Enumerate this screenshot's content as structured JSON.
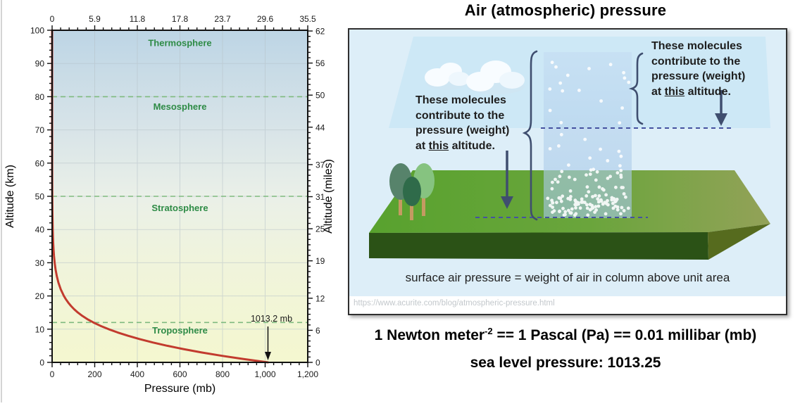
{
  "slide": {
    "title": "Air (atmospheric) pressure",
    "equation": {
      "pre": "1 Newton meter",
      "sup": "-2",
      "post": " == 1 Pascal (Pa) == 0.01 millibar (mb)"
    },
    "sea_level_line": "sea level pressure: 1013.25"
  },
  "illustration": {
    "left_note": {
      "lines": [
        "These molecules",
        "contribute to the",
        "pressure (weight)"
      ],
      "last": {
        "pre": "at ",
        "underlined": "this",
        "post": " altitude."
      }
    },
    "right_note": {
      "lines": [
        "These molecules",
        "contribute to the",
        "pressure (weight)"
      ],
      "last": {
        "pre": "at ",
        "underlined": "this",
        "post": " altitude."
      }
    },
    "caption": "surface air pressure = weight of air in column above unit area",
    "watermark": "https://www.acurite.com/blog/atmospheric-pressure.html"
  },
  "chart_data": {
    "type": "line",
    "title": "",
    "xlabel": "Pressure (mb)",
    "ylabel_left": "Altitude (km)",
    "ylabel_right": "Altitude (miles)",
    "xlim_mb": [
      0,
      1200
    ],
    "ylim_km": [
      0,
      100
    ],
    "grid": true,
    "legend": "none",
    "bottom_ticks": [
      {
        "v": 0,
        "label": "0"
      },
      {
        "v": 200,
        "label": "200"
      },
      {
        "v": 400,
        "label": "400"
      },
      {
        "v": 600,
        "label": "600"
      },
      {
        "v": 800,
        "label": "800"
      },
      {
        "v": 1000,
        "label": "1,000"
      },
      {
        "v": 1200,
        "label": "1,200"
      }
    ],
    "top_ticks": [
      {
        "v": 0,
        "label": "0"
      },
      {
        "v": 200,
        "label": "5.9"
      },
      {
        "v": 400,
        "label": "11.8"
      },
      {
        "v": 600,
        "label": "17.8"
      },
      {
        "v": 800,
        "label": "23.7"
      },
      {
        "v": 1000,
        "label": "29.6"
      },
      {
        "v": 1200,
        "label": "35.5"
      }
    ],
    "left_ticks_km": [
      0,
      10,
      20,
      30,
      40,
      50,
      60,
      70,
      80,
      90,
      100
    ],
    "right_ticks_miles": [
      0,
      6,
      12,
      19,
      25,
      31,
      37,
      44,
      50,
      56,
      62
    ],
    "km_per_mile": 1.60934,
    "minor_step_mb": 40,
    "minor_step_km": 2,
    "minor_step_miles": 1,
    "boundaries_km": [
      80,
      50,
      12
    ],
    "layers": [
      {
        "name": "Thermosphere",
        "label_km": 96.2
      },
      {
        "name": "Mesosphere",
        "label_km": 77.0
      },
      {
        "name": "Stratosphere",
        "label_km": 46.5
      },
      {
        "name": "Troposphere",
        "label_km": 9.6
      }
    ],
    "series": [
      {
        "name": "Atmospheric pressure profile",
        "points_km_mb": [
          [
            100,
            0.0003
          ],
          [
            90,
            0.0018
          ],
          [
            80,
            0.011
          ],
          [
            70,
            0.052
          ],
          [
            60,
            0.22
          ],
          [
            55,
            0.43
          ],
          [
            50,
            0.8
          ],
          [
            45,
            1.5
          ],
          [
            40,
            2.87
          ],
          [
            38,
            3.77
          ],
          [
            36,
            4.98
          ],
          [
            34,
            6.63
          ],
          [
            32,
            8.89
          ],
          [
            30,
            11.97
          ],
          [
            28,
            16.16
          ],
          [
            26,
            21.88
          ],
          [
            24,
            29.72
          ],
          [
            22,
            40.47
          ],
          [
            20,
            55.29
          ],
          [
            19,
            64.67
          ],
          [
            18,
            75.65
          ],
          [
            17,
            88.5
          ],
          [
            16,
            103.5
          ],
          [
            15,
            121.1
          ],
          [
            14,
            141.7
          ],
          [
            13,
            165.8
          ],
          [
            12,
            194.0
          ],
          [
            11,
            227.0
          ],
          [
            10,
            265.0
          ],
          [
            9,
            308.0
          ],
          [
            8,
            356.5
          ],
          [
            7,
            411.1
          ],
          [
            6,
            472.2
          ],
          [
            5,
            540.5
          ],
          [
            4,
            616.6
          ],
          [
            3,
            701.2
          ],
          [
            2,
            795.0
          ],
          [
            1,
            898.8
          ],
          [
            0,
            1013.25
          ]
        ]
      }
    ],
    "annotation": {
      "label": "1013.2 mb",
      "x_mb": 1013.2
    },
    "colors": {
      "curve": "#c23b2e",
      "boundary_dash": "#7fba7f",
      "layer_label": "#2e8b46",
      "grid": "#b6c2c8",
      "axis": "#111111"
    }
  }
}
